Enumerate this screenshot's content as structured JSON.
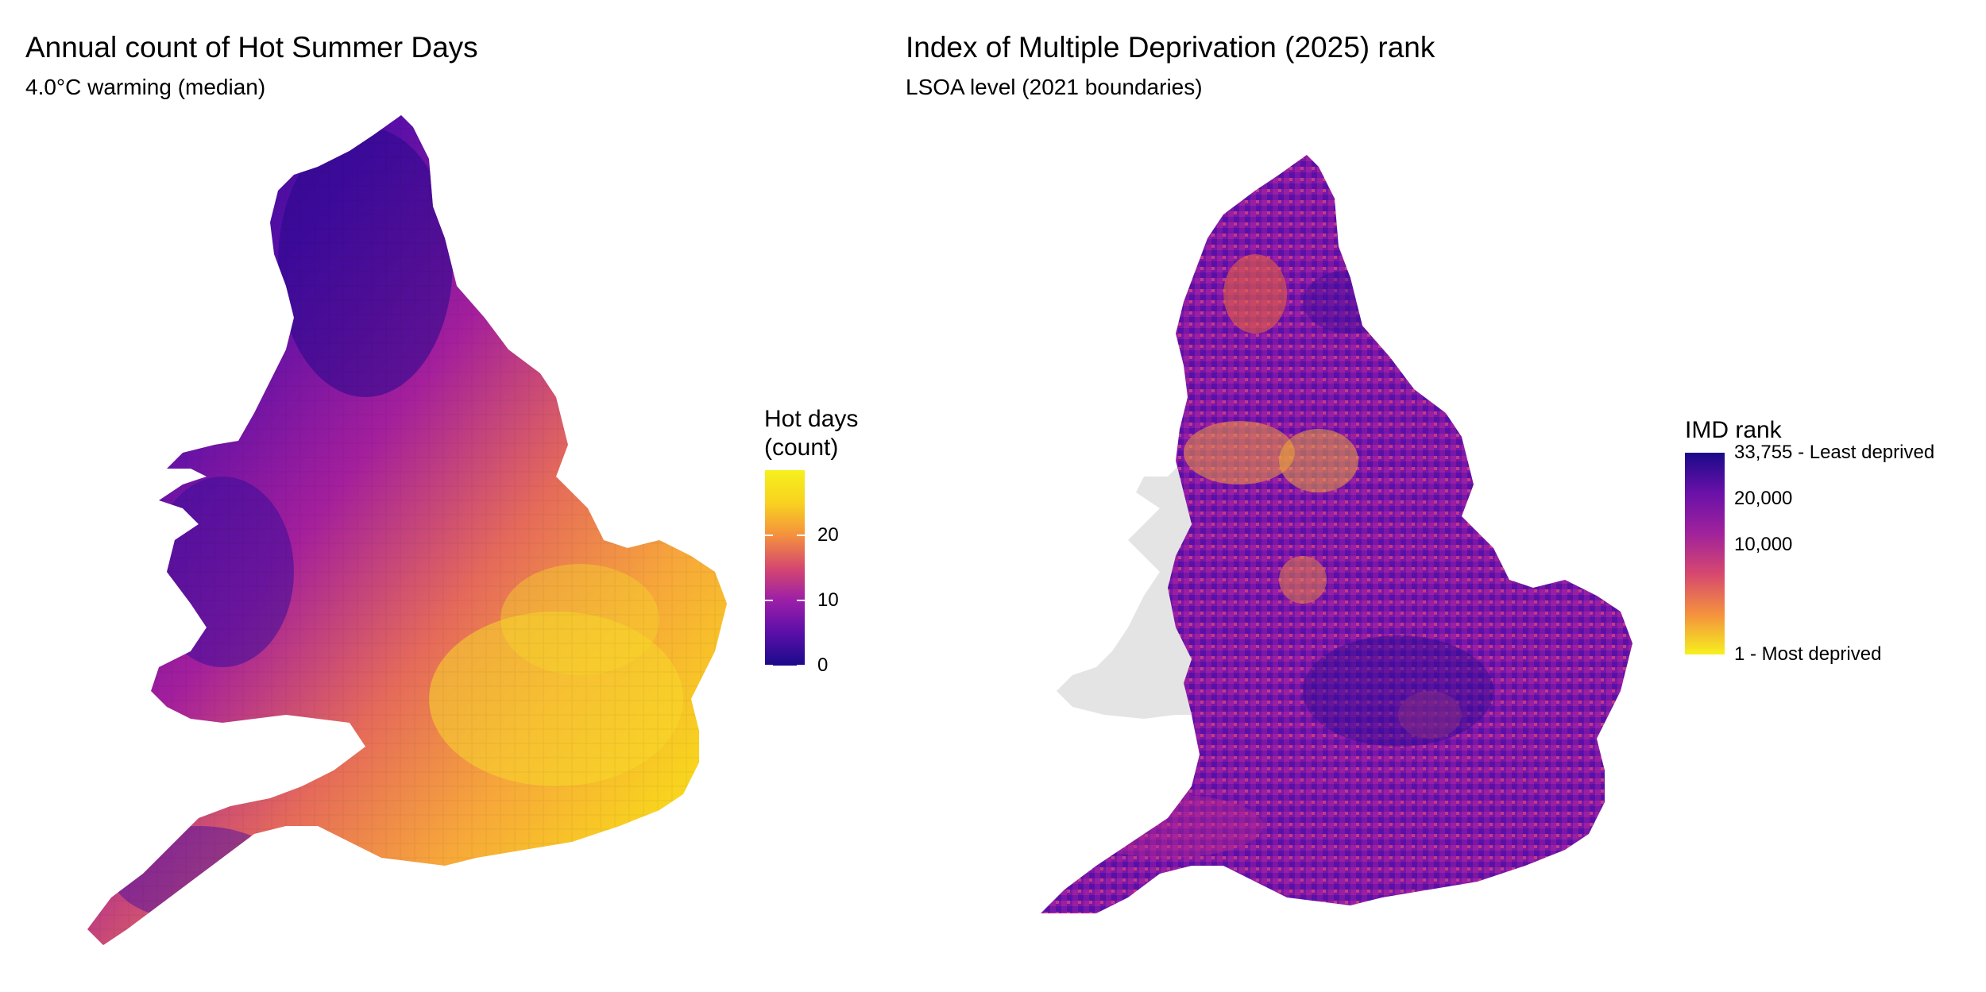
{
  "left_map": {
    "title": "Annual count of Hot Summer Days",
    "subtitle": "4.0°C warming (median)",
    "legend": {
      "title": "Hot days\n(count)",
      "ticks": [
        {
          "label": "20",
          "value": 20
        },
        {
          "label": "10",
          "value": 10
        },
        {
          "label": "0",
          "value": 0
        }
      ],
      "min": 0,
      "max": 30,
      "colors": [
        "#1a0a8a",
        "#5a0fa8",
        "#9b1fa8",
        "#d6486f",
        "#f4913e",
        "#f8d21f",
        "#f6f01e"
      ]
    }
  },
  "right_map": {
    "title": "Index of Multiple Deprivation (2025) rank",
    "subtitle": "LSOA level (2021 boundaries)",
    "legend": {
      "title": "IMD rank",
      "labels": [
        {
          "label": "33,755 - Least deprived",
          "value": 33755
        },
        {
          "label": "20,000",
          "value": 20000
        },
        {
          "label": "10,000",
          "value": 10000
        },
        {
          "label": "1 - Most deprived",
          "value": 1
        }
      ],
      "colors": [
        "#1a0a8a",
        "#6a11a8",
        "#a0229c",
        "#d6486f",
        "#f4913e",
        "#f6f01e"
      ]
    },
    "excluded_region_color": "#e4e4e4"
  }
}
